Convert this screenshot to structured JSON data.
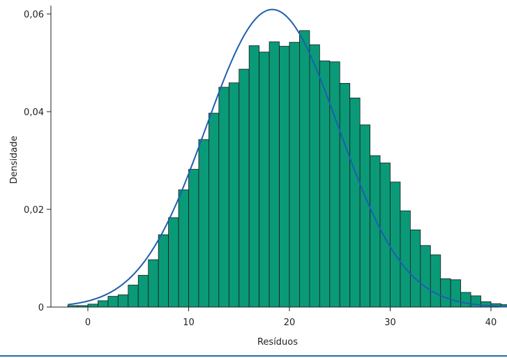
{
  "chart_data": {
    "type": "bar",
    "subtype": "histogram-with-normal-density-curve",
    "title": "",
    "xlabel": "Resíduos",
    "ylabel": "Densidade",
    "xlim": [
      -2.5,
      40
    ],
    "ylim": [
      0,
      0.062
    ],
    "grid": false,
    "legend": "none",
    "x_ticks": [
      {
        "value": 0,
        "label": "0"
      },
      {
        "value": 10,
        "label": "10"
      },
      {
        "value": 20,
        "label": "20"
      },
      {
        "value": 30,
        "label": "30"
      },
      {
        "value": 40,
        "label": "40"
      }
    ],
    "y_ticks": [
      {
        "value": 0,
        "label": "0"
      },
      {
        "value": 0.02,
        "label": "0,02"
      },
      {
        "value": 0.04,
        "label": "0,04"
      },
      {
        "value": 0.06,
        "label": "0,06"
      }
    ],
    "bins": {
      "start": -2,
      "width": 1,
      "values": [
        0.0003,
        0.0003,
        0.0006,
        0.0013,
        0.0022,
        0.0025,
        0.0045,
        0.0065,
        0.0097,
        0.0148,
        0.0183,
        0.024,
        0.0282,
        0.0343,
        0.0397,
        0.045,
        0.0459,
        0.0487,
        0.0535,
        0.0522,
        0.0543,
        0.0534,
        0.0542,
        0.0566,
        0.0537,
        0.0504,
        0.0502,
        0.0458,
        0.0428,
        0.0373,
        0.031,
        0.0295,
        0.0256,
        0.0197,
        0.0158,
        0.0126,
        0.0107,
        0.0058,
        0.0056,
        0.003,
        0.0023,
        0.0011,
        0.0007,
        0.0005
      ]
    },
    "curve": {
      "type": "normal",
      "mean": 18.3,
      "sd": 6.55
    },
    "colors": {
      "bar_fill": "#0a9a78",
      "bar_stroke": "#1a1a1a",
      "curve": "#1f5fae",
      "axis": "#222222",
      "bottom_rule": "#1f6fb2"
    }
  }
}
